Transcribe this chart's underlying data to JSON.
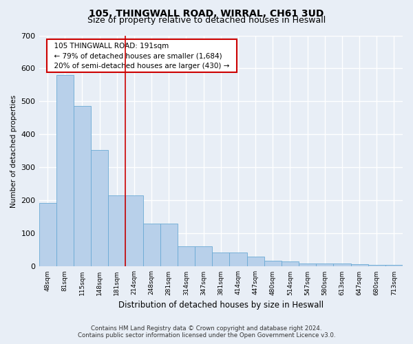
{
  "title": "105, THINGWALL ROAD, WIRRAL, CH61 3UD",
  "subtitle": "Size of property relative to detached houses in Heswall",
  "xlabel": "Distribution of detached houses by size in Heswall",
  "ylabel": "Number of detached properties",
  "footer_line1": "Contains HM Land Registry data © Crown copyright and database right 2024.",
  "footer_line2": "Contains public sector information licensed under the Open Government Licence v3.0.",
  "bar_labels": [
    "48sqm",
    "81sqm",
    "115sqm",
    "148sqm",
    "181sqm",
    "214sqm",
    "248sqm",
    "281sqm",
    "314sqm",
    "347sqm",
    "381sqm",
    "414sqm",
    "447sqm",
    "480sqm",
    "514sqm",
    "547sqm",
    "580sqm",
    "613sqm",
    "647sqm",
    "680sqm",
    "713sqm"
  ],
  "bar_values": [
    192,
    580,
    487,
    353,
    215,
    215,
    130,
    130,
    62,
    62,
    42,
    42,
    30,
    18,
    15,
    10,
    10,
    10,
    7,
    5,
    5
  ],
  "bar_color": "#b8d0ea",
  "bar_edge_color": "#6aaad4",
  "red_line_x": 4.5,
  "annotation_text": "  105 THINGWALL ROAD: 191sqm  \n  ← 79% of detached houses are smaller (1,684)  \n  20% of semi-detached houses are larger (430) →  ",
  "annotation_box_color": "#ffffff",
  "annotation_box_edge": "#cc0000",
  "ylim": [
    0,
    700
  ],
  "yticks": [
    0,
    100,
    200,
    300,
    400,
    500,
    600,
    700
  ],
  "background_color": "#e8eef6",
  "grid_color": "#ffffff",
  "red_line_color": "#cc0000",
  "title_fontsize": 10,
  "subtitle_fontsize": 9
}
